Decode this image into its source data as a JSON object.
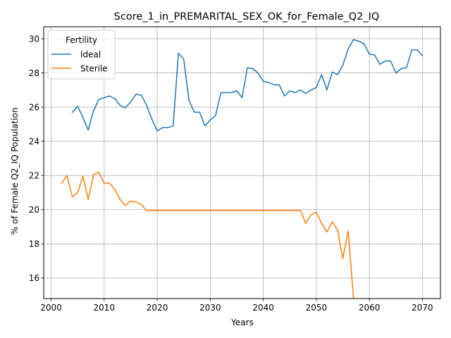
{
  "chart_data": {
    "type": "line",
    "title": "Score_1_in_PREMARITAL_SEX_OK_for_Female_Q2_IQ",
    "xlabel": "Years",
    "ylabel": "% of Female Q2_IQ Population",
    "xlim": [
      1998.6,
      2073.4
    ],
    "ylim": [
      14.8,
      30.7
    ],
    "xticks": [
      2000,
      2010,
      2020,
      2030,
      2040,
      2050,
      2060,
      2070
    ],
    "yticks": [
      16,
      18,
      20,
      22,
      24,
      26,
      28,
      30
    ],
    "grid": true,
    "legend": {
      "title": "Fertility",
      "placement": "top-left"
    },
    "series": [
      {
        "name": "Ideal",
        "color": "#1f77b4",
        "x": [
          2004,
          2005,
          2006,
          2007,
          2008,
          2009,
          2010,
          2011,
          2012,
          2013,
          2014,
          2015,
          2016,
          2017,
          2018,
          2019,
          2020,
          2021,
          2022,
          2023,
          2024,
          2025,
          2026,
          2027,
          2028,
          2029,
          2030,
          2031,
          2032,
          2033,
          2034,
          2035,
          2036,
          2037,
          2038,
          2039,
          2040,
          2041,
          2042,
          2043,
          2044,
          2045,
          2046,
          2047,
          2048,
          2049,
          2050,
          2051,
          2052,
          2053,
          2054,
          2055,
          2056,
          2057,
          2058,
          2059,
          2060,
          2061,
          2062,
          2063,
          2064,
          2065,
          2066,
          2067,
          2068,
          2069,
          2070
        ],
        "y": [
          25.7,
          26.05,
          25.4,
          24.65,
          25.8,
          26.45,
          26.55,
          26.65,
          26.5,
          26.1,
          25.95,
          26.3,
          26.75,
          26.7,
          26.1,
          25.3,
          24.6,
          24.8,
          24.8,
          24.9,
          29.15,
          28.8,
          26.4,
          25.7,
          25.7,
          24.9,
          25.25,
          25.5,
          26.85,
          26.85,
          26.85,
          26.95,
          26.55,
          28.3,
          28.25,
          28.0,
          27.5,
          27.45,
          27.3,
          27.3,
          26.65,
          26.95,
          26.85,
          27.0,
          26.8,
          27.0,
          27.15,
          27.9,
          27.0,
          28.05,
          27.9,
          28.45,
          29.4,
          29.95,
          29.85,
          29.7,
          29.1,
          29.05,
          28.5,
          28.7,
          28.7,
          28.0,
          28.25,
          28.3,
          29.35,
          29.35,
          29.0
        ]
      },
      {
        "name": "Sterile",
        "color": "#ff7f0e",
        "x": [
          2002,
          2003,
          2004,
          2005,
          2006,
          2007,
          2008,
          2009,
          2010,
          2011,
          2012,
          2013,
          2014,
          2015,
          2016,
          2017,
          2018,
          2019,
          2020,
          2021,
          2022,
          2023,
          2024,
          2025,
          2026,
          2027,
          2028,
          2029,
          2030,
          2031,
          2032,
          2033,
          2034,
          2035,
          2036,
          2037,
          2038,
          2039,
          2040,
          2041,
          2042,
          2043,
          2044,
          2045,
          2046,
          2047,
          2048,
          2049,
          2050,
          2051,
          2052,
          2053,
          2054,
          2055,
          2056,
          2057
        ],
        "y": [
          21.55,
          22.0,
          20.75,
          21.0,
          21.95,
          20.6,
          22.05,
          22.2,
          21.55,
          21.55,
          21.2,
          20.6,
          20.25,
          20.5,
          20.45,
          20.3,
          19.95,
          19.95,
          19.95,
          19.95,
          19.95,
          19.95,
          19.95,
          19.95,
          19.95,
          19.95,
          19.95,
          19.95,
          19.95,
          19.95,
          19.95,
          19.95,
          19.95,
          19.95,
          19.95,
          19.95,
          19.95,
          19.95,
          19.95,
          19.95,
          19.95,
          19.95,
          19.95,
          19.95,
          19.95,
          19.95,
          19.2,
          19.7,
          19.85,
          19.2,
          18.7,
          19.3,
          18.8,
          17.15,
          18.75,
          14.85
        ]
      }
    ]
  }
}
